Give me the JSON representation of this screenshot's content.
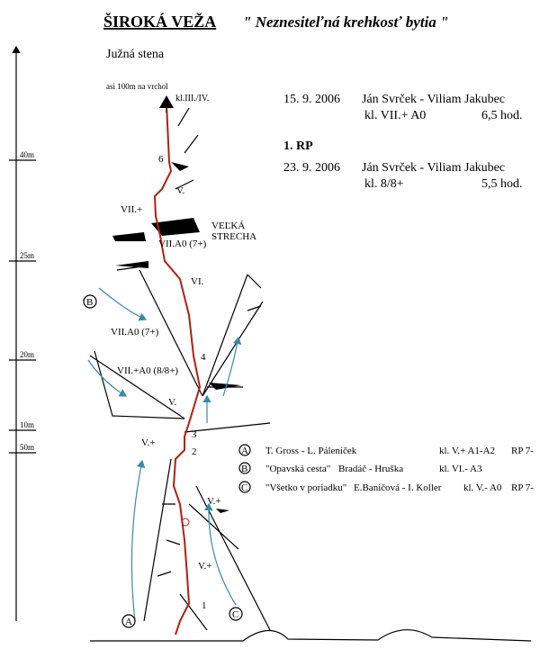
{
  "header": {
    "title": "ŠIROKÁ VEŽA",
    "subtitle": "\" Neznesiteľná krehkosť bytia \"",
    "face": "Južná stena"
  },
  "summit": {
    "note": "asi 100m na vrchol",
    "grade": "kl.III./IV."
  },
  "scale": [
    "40m",
    "25m",
    "20m",
    "10m",
    "50m"
  ],
  "ascents": [
    {
      "date": "15. 9. 2006",
      "climbers": "Ján Svrček - Viliam Jakubec",
      "grade": "kl. VII.+ A0",
      "time": "6,5 hod."
    },
    {
      "heading": "1. RP",
      "date": "23. 9. 2006",
      "climbers": "Ján Svrček - Viliam Jakubec",
      "grade": "kl. 8/8+",
      "time": "5,5 hod."
    }
  ],
  "topo_labels": [
    "6",
    "V.",
    "VII.+",
    "VEĽKÁ",
    "STRECHA",
    "VII.A0 (7+)",
    "VI.",
    "B",
    "VII.A0 (7+)",
    "4",
    "VII.+A0 (8/8+)",
    "V.",
    "V.+",
    "3",
    "2",
    "V.+",
    "V.+",
    "1",
    "A",
    "C"
  ],
  "legend": [
    {
      "key": "A",
      "name": "T. Gross - L. Páleníček",
      "grade": "kl. V.+ A1-A2",
      "rp": "RP 7-"
    },
    {
      "key": "B",
      "name": "\"Opavská cesta\"",
      "authors": "Bradáč - Hruška",
      "grade": "kl. VI.- A3"
    },
    {
      "key": "C",
      "name": "\"Všetko v poriadku\"",
      "authors": "E.Baničová - I. Koller",
      "grade": "kl. V.- A0",
      "rp": "RP 7-"
    }
  ]
}
